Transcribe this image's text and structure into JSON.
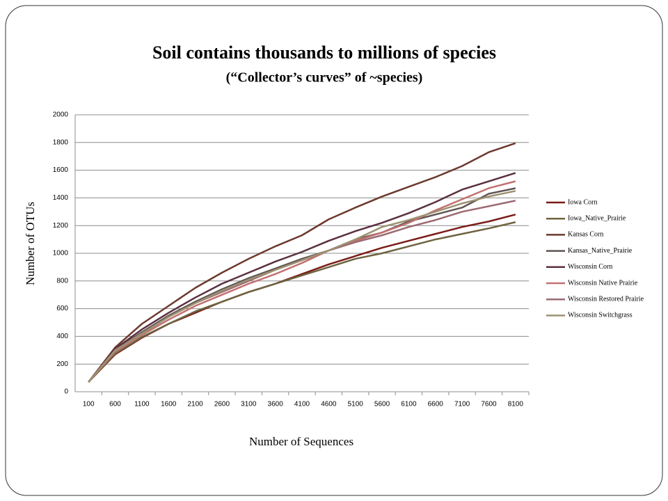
{
  "chart_data": {
    "type": "line",
    "title": "Soil contains thousands to millions of species",
    "subtitle": "(“Collector’s curves” of ~species)",
    "x_label": "Number of Sequences",
    "y_label": "Number of OTUs",
    "categories": [
      "100",
      "600",
      "1100",
      "1600",
      "2100",
      "2600",
      "3100",
      "3600",
      "4100",
      "4600",
      "5100",
      "5600",
      "6100",
      "6600",
      "7100",
      "7600",
      "8100"
    ],
    "ylim": [
      0,
      2000
    ],
    "yticks": [
      0,
      200,
      400,
      600,
      800,
      1000,
      1200,
      1400,
      1600,
      1800,
      2000
    ],
    "grid": true,
    "legend": "right",
    "series": [
      {
        "name": "Iowa Corn",
        "color": "#7a1c18",
        "values": [
          70,
          270,
          390,
          490,
          570,
          650,
          720,
          780,
          850,
          920,
          980,
          1040,
          1090,
          1140,
          1190,
          1230,
          1280
        ]
      },
      {
        "name": "Iowa_Native_Prairie",
        "color": "#6e6340",
        "values": [
          70,
          275,
          395,
          490,
          580,
          650,
          720,
          780,
          840,
          900,
          960,
          1000,
          1050,
          1100,
          1140,
          1180,
          1225
        ]
      },
      {
        "name": "Kansas Corn",
        "color": "#6b3a2e",
        "values": [
          70,
          320,
          490,
          620,
          750,
          860,
          960,
          1050,
          1130,
          1245,
          1330,
          1410,
          1480,
          1550,
          1630,
          1730,
          1795
        ]
      },
      {
        "name": "Kansas_Native_Prairie",
        "color": "#5e5452",
        "values": [
          70,
          300,
          430,
          550,
          650,
          740,
          820,
          890,
          960,
          1020,
          1100,
          1150,
          1230,
          1280,
          1330,
          1430,
          1470
        ]
      },
      {
        "name": "Wisconsin Corn",
        "color": "#5a3040",
        "values": [
          70,
          310,
          450,
          570,
          680,
          780,
          860,
          940,
          1010,
          1090,
          1160,
          1220,
          1290,
          1370,
          1460,
          1520,
          1580
        ]
      },
      {
        "name": "Wisconsin Native Prairie",
        "color": "#c27070",
        "values": [
          70,
          290,
          410,
          520,
          620,
          700,
          780,
          850,
          930,
          1020,
          1090,
          1150,
          1220,
          1310,
          1390,
          1470,
          1520
        ]
      },
      {
        "name": "Wisconsin Restored Prairie",
        "color": "#9b6b72",
        "values": [
          70,
          300,
          420,
          540,
          640,
          720,
          800,
          880,
          950,
          1020,
          1080,
          1130,
          1190,
          1240,
          1300,
          1340,
          1380
        ]
      },
      {
        "name": "Wisconsin Switchgrass",
        "color": "#9c9272",
        "values": [
          70,
          300,
          420,
          540,
          640,
          730,
          810,
          880,
          950,
          1020,
          1100,
          1190,
          1240,
          1300,
          1360,
          1410,
          1450
        ]
      }
    ]
  }
}
